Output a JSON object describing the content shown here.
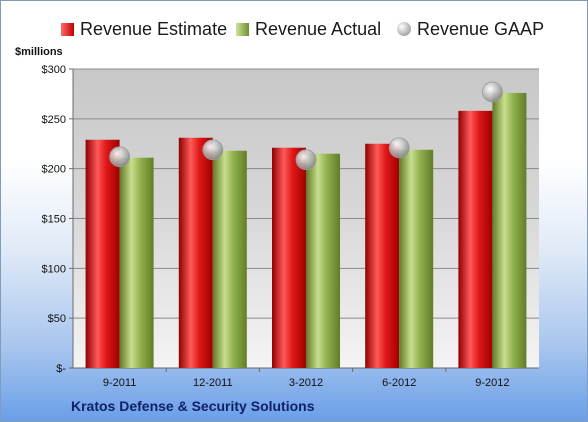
{
  "legend": {
    "estimate": "Revenue Estimate",
    "actual": "Revenue Actual",
    "gaap": "Revenue GAAP"
  },
  "unit_label": "$millions",
  "company": "Kratos Defense & Security Solutions",
  "colors": {
    "estimate": "#c00000",
    "actual": "#7f9f3a",
    "gaap": "#b4b4b4"
  },
  "chart_data": {
    "type": "bar",
    "categories": [
      "9-2011",
      "12-2011",
      "3-2012",
      "6-2012",
      "9-2012"
    ],
    "series": [
      {
        "name": "Revenue Estimate",
        "values": [
          229,
          231,
          221,
          225,
          258
        ]
      },
      {
        "name": "Revenue Actual",
        "values": [
          211,
          218,
          215,
          219,
          276
        ]
      },
      {
        "name": "Revenue GAAP",
        "values": [
          212,
          219,
          209,
          221,
          277
        ]
      }
    ],
    "ylabel": "$millions",
    "ylim": [
      0,
      300
    ],
    "yticks": [
      0,
      50,
      100,
      150,
      200,
      250,
      300
    ],
    "ytick_labels": [
      "$-",
      "$50",
      "$100",
      "$150",
      "$200",
      "$250",
      "$300"
    ],
    "grid": true,
    "legend_position": "top"
  }
}
